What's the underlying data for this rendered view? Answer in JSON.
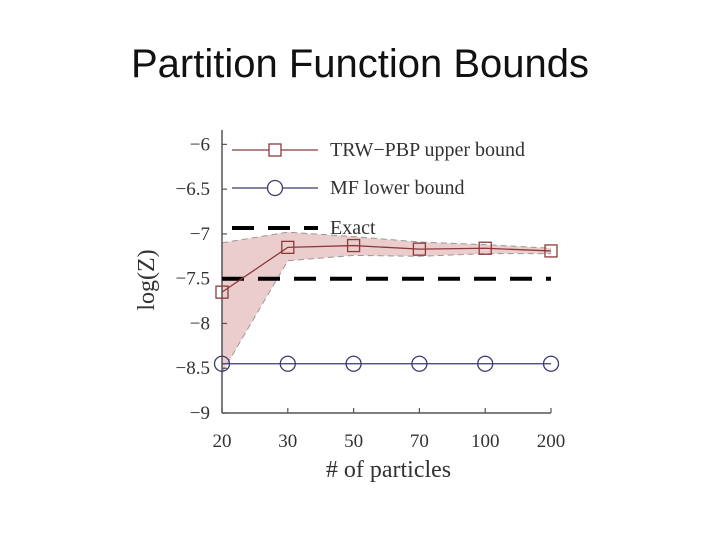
{
  "slide": {
    "title": "Partition Function Bounds"
  },
  "chart_data": {
    "type": "line",
    "title": "",
    "xlabel": "# of particles",
    "ylabel": "log(Z)",
    "x_tick_labels": [
      "20",
      "30",
      "50",
      "70",
      "100",
      "200"
    ],
    "y_tick_labels": [
      "−6",
      "−6.5",
      "−7",
      "−7.5",
      "−8",
      "−8.5",
      "−9"
    ],
    "y_ticks": [
      -6,
      -6.5,
      -7,
      -7.5,
      -8,
      -8.5,
      -9
    ],
    "ylim": [
      -9,
      -5.75
    ],
    "legend_position": "top-right",
    "colors": {
      "upper": "#8b3a3a",
      "band": "#e6bcbc",
      "lower": "#3a3a6e",
      "exact": "#000000"
    },
    "series": [
      {
        "name": "TRW−PBP upper bound",
        "marker": "square",
        "values": [
          -7.65,
          -7.15,
          -7.13,
          -7.17,
          -7.16,
          -7.19
        ],
        "band_upper": [
          -7.1,
          -6.98,
          -7.03,
          -7.09,
          -7.12,
          -7.16
        ],
        "band_lower": [
          -8.55,
          -7.3,
          -7.24,
          -7.25,
          -7.22,
          -7.22
        ]
      },
      {
        "name": "MF lower bound",
        "marker": "circle",
        "values": [
          -8.45,
          -8.45,
          -8.45,
          -8.45,
          -8.45,
          -8.45
        ]
      },
      {
        "name": "Exact",
        "style": "dashed",
        "values": [
          -7.5,
          -7.5,
          -7.5,
          -7.5,
          -7.5,
          -7.5
        ]
      }
    ]
  }
}
